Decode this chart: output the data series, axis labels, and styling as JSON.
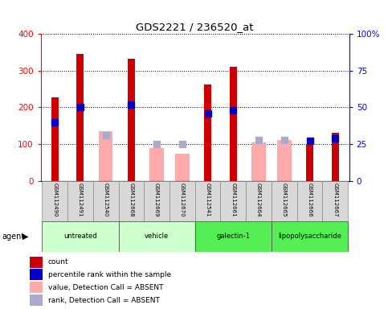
{
  "title": "GDS2221 / 236520_at",
  "samples": [
    "GSM112490",
    "GSM112491",
    "GSM112540",
    "GSM112668",
    "GSM112669",
    "GSM112670",
    "GSM112541",
    "GSM112661",
    "GSM112664",
    "GSM112665",
    "GSM112666",
    "GSM112667"
  ],
  "count_values": [
    228,
    345,
    null,
    333,
    null,
    null,
    262,
    310,
    null,
    null,
    100,
    130
  ],
  "percentile_values": [
    40,
    50,
    null,
    52,
    null,
    null,
    46,
    48,
    null,
    null,
    27,
    29
  ],
  "absent_value_values": [
    null,
    null,
    135,
    null,
    90,
    73,
    null,
    null,
    105,
    110,
    null,
    null
  ],
  "absent_rank_values": [
    null,
    null,
    31,
    null,
    25,
    25,
    null,
    null,
    27.5,
    27.5,
    null,
    null
  ],
  "ylim_left": [
    0,
    400
  ],
  "ylim_right": [
    0,
    100
  ],
  "yticks_left": [
    0,
    100,
    200,
    300,
    400
  ],
  "yticks_right": [
    0,
    25,
    50,
    75,
    100
  ],
  "yticklabels_right": [
    "0",
    "25",
    "50",
    "75",
    "100%"
  ],
  "count_color": "#cc0000",
  "percentile_color": "#0000cc",
  "absent_value_color": "#ffaaaa",
  "absent_rank_color": "#aaaacc",
  "groups_info": [
    {
      "label": "untreated",
      "start": 0,
      "end": 2,
      "color": "#ccffcc"
    },
    {
      "label": "vehicle",
      "start": 3,
      "end": 5,
      "color": "#ccffcc"
    },
    {
      "label": "galectin-1",
      "start": 6,
      "end": 8,
      "color": "#55ee55"
    },
    {
      "label": "lipopolysaccharide",
      "start": 9,
      "end": 11,
      "color": "#55ee55"
    }
  ],
  "legend_labels": [
    "count",
    "percentile rank within the sample",
    "value, Detection Call = ABSENT",
    "rank, Detection Call = ABSENT"
  ],
  "legend_colors": [
    "#cc0000",
    "#0000cc",
    "#ffaaaa",
    "#aaaacc"
  ]
}
